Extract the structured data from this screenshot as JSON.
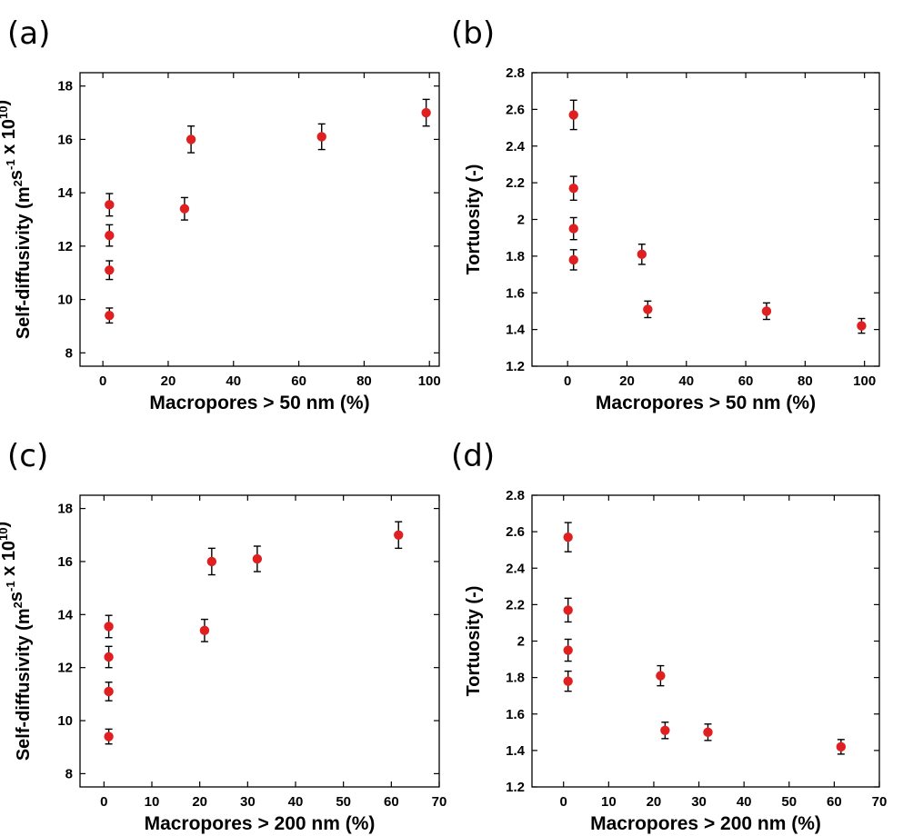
{
  "chart_data": [
    {
      "id": "a",
      "panel_label": "(a)",
      "type": "scatter",
      "xlabel": "Macropores > 50 nm (%)",
      "ylabel": {
        "text": "Self-diffusivity (m",
        "sup1": "2",
        "mid1": "s",
        "sup2": "-1",
        "mid2": " x 10",
        "sup3": "10",
        "end": ")"
      },
      "xlim": [
        -7,
        103
      ],
      "ylim": [
        7.5,
        18.5
      ],
      "xticks": [
        0,
        20,
        40,
        60,
        80,
        100
      ],
      "yticks": [
        8,
        10,
        12,
        14,
        16,
        18
      ],
      "yticklabels": [
        "8",
        "10",
        "12",
        "14",
        "16",
        "18"
      ],
      "point_color": "#e02020",
      "points": [
        {
          "x": 2,
          "y": 9.4,
          "err": 0.28
        },
        {
          "x": 2,
          "y": 11.1,
          "err": 0.35
        },
        {
          "x": 2,
          "y": 12.4,
          "err": 0.4
        },
        {
          "x": 2,
          "y": 13.55,
          "err": 0.42
        },
        {
          "x": 25,
          "y": 13.4,
          "err": 0.42
        },
        {
          "x": 27,
          "y": 16.0,
          "err": 0.5
        },
        {
          "x": 67,
          "y": 16.1,
          "err": 0.48
        },
        {
          "x": 99,
          "y": 17.0,
          "err": 0.5
        }
      ]
    },
    {
      "id": "b",
      "panel_label": "(b)",
      "type": "scatter",
      "xlabel": "Macropores > 50 nm (%)",
      "ylabel": {
        "text": "Tortuosity (-)"
      },
      "xlim": [
        -12,
        105
      ],
      "ylim": [
        1.2,
        2.8
      ],
      "xticks": [
        0,
        20,
        40,
        60,
        80,
        100
      ],
      "yticks": [
        1.2,
        1.4,
        1.6,
        1.8,
        2.0,
        2.2,
        2.4,
        2.6,
        2.8
      ],
      "yticklabels": [
        "1.2",
        "1.4",
        "1.6",
        "1.8",
        "2",
        "2.2",
        "2.4",
        "2.6",
        "2.8"
      ],
      "point_color": "#e02020",
      "points": [
        {
          "x": 2,
          "y": 1.78,
          "err": 0.055
        },
        {
          "x": 2,
          "y": 1.95,
          "err": 0.06
        },
        {
          "x": 2,
          "y": 2.17,
          "err": 0.065
        },
        {
          "x": 2,
          "y": 2.57,
          "err": 0.08
        },
        {
          "x": 25,
          "y": 1.81,
          "err": 0.055
        },
        {
          "x": 27,
          "y": 1.51,
          "err": 0.045
        },
        {
          "x": 67,
          "y": 1.5,
          "err": 0.045
        },
        {
          "x": 99,
          "y": 1.42,
          "err": 0.04
        }
      ]
    },
    {
      "id": "c",
      "panel_label": "(c)",
      "type": "scatter",
      "xlabel": "Macropores > 200 nm (%)",
      "ylabel": {
        "text": "Self-diffusivity (m",
        "sup1": "2",
        "mid1": "s",
        "sup2": "-1",
        "mid2": " x 10",
        "sup3": "10",
        "end": ")"
      },
      "xlim": [
        -5,
        70
      ],
      "ylim": [
        7.5,
        18.5
      ],
      "xticks": [
        0,
        10,
        20,
        30,
        40,
        50,
        60,
        70
      ],
      "yticks": [
        8,
        10,
        12,
        14,
        16,
        18
      ],
      "yticklabels": [
        "8",
        "10",
        "12",
        "14",
        "16",
        "18"
      ],
      "point_color": "#e02020",
      "points": [
        {
          "x": 1,
          "y": 9.4,
          "err": 0.28
        },
        {
          "x": 1,
          "y": 11.1,
          "err": 0.35
        },
        {
          "x": 1,
          "y": 12.4,
          "err": 0.4
        },
        {
          "x": 1,
          "y": 13.55,
          "err": 0.42
        },
        {
          "x": 21,
          "y": 13.4,
          "err": 0.42
        },
        {
          "x": 22.5,
          "y": 16.0,
          "err": 0.5
        },
        {
          "x": 32,
          "y": 16.1,
          "err": 0.48
        },
        {
          "x": 61.5,
          "y": 17.0,
          "err": 0.5
        }
      ]
    },
    {
      "id": "d",
      "panel_label": "(d)",
      "type": "scatter",
      "xlabel": "Macropores > 200 nm (%)",
      "ylabel": {
        "text": "Tortuosity (-)"
      },
      "xlim": [
        -7,
        70
      ],
      "ylim": [
        1.2,
        2.8
      ],
      "xticks": [
        0,
        10,
        20,
        30,
        40,
        50,
        60,
        70
      ],
      "yticks": [
        1.2,
        1.4,
        1.6,
        1.8,
        2.0,
        2.2,
        2.4,
        2.6,
        2.8
      ],
      "yticklabels": [
        "1.2",
        "1.4",
        "1.6",
        "1.8",
        "2",
        "2.2",
        "2.4",
        "2.6",
        "2.8"
      ],
      "point_color": "#e02020",
      "points": [
        {
          "x": 1,
          "y": 1.78,
          "err": 0.055
        },
        {
          "x": 1,
          "y": 1.95,
          "err": 0.06
        },
        {
          "x": 1,
          "y": 2.17,
          "err": 0.065
        },
        {
          "x": 1,
          "y": 2.57,
          "err": 0.08
        },
        {
          "x": 21.5,
          "y": 1.81,
          "err": 0.055
        },
        {
          "x": 22.5,
          "y": 1.51,
          "err": 0.045
        },
        {
          "x": 32,
          "y": 1.5,
          "err": 0.045
        },
        {
          "x": 61.5,
          "y": 1.42,
          "err": 0.04
        }
      ]
    }
  ]
}
